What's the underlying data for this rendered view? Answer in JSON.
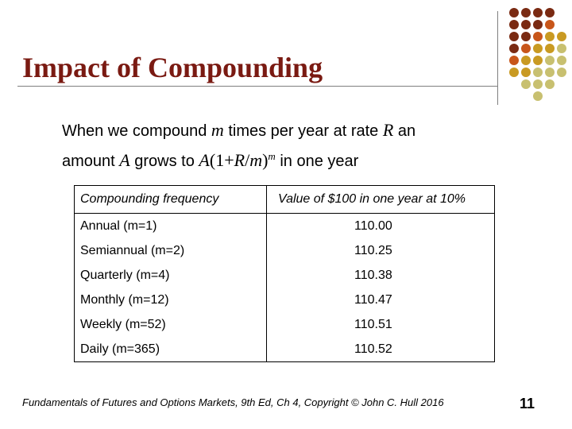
{
  "title": "Impact of Compounding",
  "body": {
    "line1_a": "When we compound ",
    "var_m": "m",
    "line1_b": " times per year at rate ",
    "var_R": "R",
    "line1_c": "  an",
    "line2_a": "amount ",
    "var_A": "A",
    "line2_b": " grows to ",
    "formula_A": "A",
    "formula_open": "(1+",
    "formula_R": "R",
    "formula_slash": "/",
    "formula_m": "m",
    "formula_close": ")",
    "formula_exp": "m",
    "line2_c": "  in one year"
  },
  "table": {
    "headers": [
      "Compounding frequency",
      "Value of $100 in one year at 10%"
    ],
    "rows": [
      [
        "Annual (m=1)",
        "110.00"
      ],
      [
        "Semiannual (m=2)",
        "110.25"
      ],
      [
        "Quarterly (m=4)",
        "110.38"
      ],
      [
        "Monthly (m=12)",
        "110.47"
      ],
      [
        "Weekly (m=52)",
        "110.51"
      ],
      [
        "Daily (m=365)",
        "110.52"
      ]
    ]
  },
  "footer": "Fundamentals of Futures and Options Markets, 9th Ed, Ch 4, Copyright © John C. Hull 2016",
  "page_number": "11",
  "colors": {
    "title": "#7a1a12",
    "dot_dark": "#7a2a12",
    "dot_orange": "#c8561a",
    "dot_gold": "#c99a22",
    "dot_khaki": "#c8c070"
  }
}
